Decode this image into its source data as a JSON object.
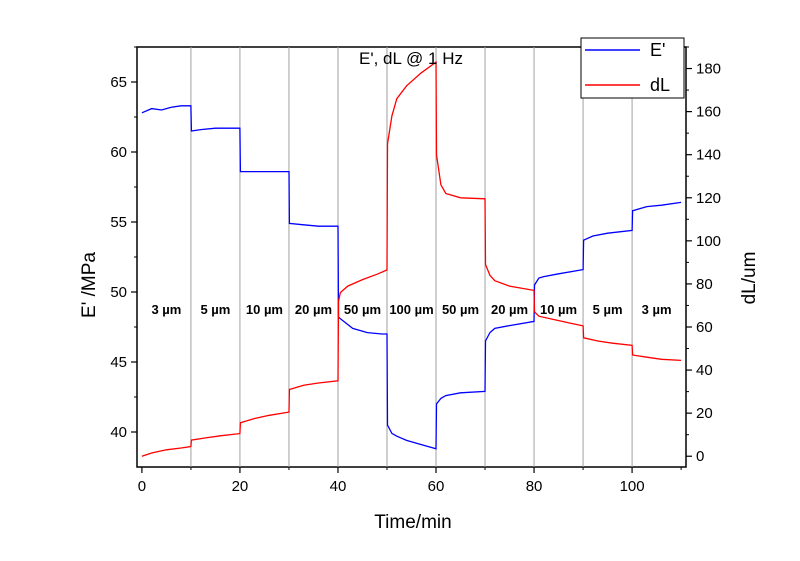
{
  "chart_data": {
    "type": "line",
    "title": "E', dL @ 1 Hz",
    "xlabel": "Time/min",
    "ylabel_left": "E' /MPa",
    "ylabel_right": "dL/um",
    "xlim": [
      -1,
      111
    ],
    "ylim_left": [
      37.5,
      67.5
    ],
    "ylim_right": [
      -5,
      190
    ],
    "x_ticks": [
      0,
      20,
      40,
      60,
      80,
      100
    ],
    "y_left_ticks": [
      40,
      45,
      50,
      55,
      60,
      65
    ],
    "y_right_ticks": [
      0,
      20,
      40,
      60,
      80,
      100,
      120,
      140,
      160,
      180
    ],
    "step_boundaries": [
      10,
      20,
      30,
      40,
      50,
      60,
      70,
      80,
      90,
      100
    ],
    "step_labels": [
      {
        "x": 5,
        "text": "3 µm"
      },
      {
        "x": 15,
        "text": "5 µm"
      },
      {
        "x": 25,
        "text": "10 µm"
      },
      {
        "x": 35,
        "text": "20 µm"
      },
      {
        "x": 45,
        "text": "50 µm"
      },
      {
        "x": 55,
        "text": "100 µm"
      },
      {
        "x": 65,
        "text": "50 µm"
      },
      {
        "x": 75,
        "text": "20 µm"
      },
      {
        "x": 85,
        "text": "10 µm"
      },
      {
        "x": 95,
        "text": "5 µm"
      },
      {
        "x": 105,
        "text": "3 µm"
      }
    ],
    "legend_position": "top-right",
    "series": [
      {
        "name": "E'",
        "axis": "left",
        "color": "#0000ff",
        "x": [
          0,
          2,
          4,
          6,
          8,
          10,
          10.1,
          12,
          15,
          18,
          20,
          20.1,
          23,
          26,
          30,
          30.1,
          33,
          36,
          40,
          40.1,
          43,
          46,
          49,
          50,
          50.1,
          51,
          52,
          54,
          57,
          60,
          60.1,
          61,
          62,
          65,
          70,
          70.1,
          71,
          72,
          75,
          80,
          80.1,
          81,
          82,
          85,
          90,
          90.1,
          92,
          95,
          100,
          100.1,
          103,
          106,
          110
        ],
        "y": [
          62.8,
          63.1,
          63.0,
          63.2,
          63.3,
          63.3,
          61.5,
          61.6,
          61.7,
          61.7,
          61.7,
          58.6,
          58.6,
          58.6,
          58.6,
          54.9,
          54.8,
          54.7,
          54.7,
          48.2,
          47.4,
          47.1,
          47.0,
          47.0,
          40.5,
          39.9,
          39.7,
          39.4,
          39.1,
          38.8,
          42.0,
          42.4,
          42.6,
          42.8,
          42.9,
          46.5,
          47.1,
          47.4,
          47.6,
          47.9,
          50.5,
          51.0,
          51.1,
          51.3,
          51.6,
          53.7,
          54.0,
          54.2,
          54.4,
          55.8,
          56.1,
          56.2,
          56.4
        ]
      },
      {
        "name": "dL",
        "axis": "right",
        "color": "#ff0000",
        "x": [
          0,
          2,
          5,
          8,
          10,
          10.1,
          13,
          16,
          20,
          20.1,
          23,
          26,
          30,
          30.1,
          33,
          36,
          40,
          40.1,
          40.5,
          42,
          45,
          48,
          50,
          50.1,
          51,
          52,
          54,
          57,
          60,
          60.1,
          61,
          62,
          65,
          70,
          70.1,
          71,
          72,
          75,
          80,
          80.1,
          81,
          84,
          87,
          90,
          90.1,
          93,
          96,
          100,
          100.1,
          103,
          106,
          110
        ],
        "y": [
          0,
          1.5,
          3.0,
          3.8,
          4.5,
          7.5,
          8.5,
          9.5,
          10.5,
          15.5,
          17.5,
          19.0,
          20.5,
          31.0,
          33.0,
          34.0,
          35.0,
          72.0,
          76.0,
          79.0,
          82.0,
          84.5,
          86.5,
          145.0,
          158.0,
          166.0,
          172.0,
          178.0,
          183.0,
          140.0,
          126.0,
          122.0,
          120.0,
          119.5,
          89.0,
          84.0,
          81.5,
          79.0,
          77.0,
          67.0,
          65.0,
          63.5,
          62.0,
          60.5,
          55.0,
          53.5,
          52.5,
          51.5,
          47.0,
          46.0,
          45.0,
          44.5
        ]
      }
    ]
  }
}
